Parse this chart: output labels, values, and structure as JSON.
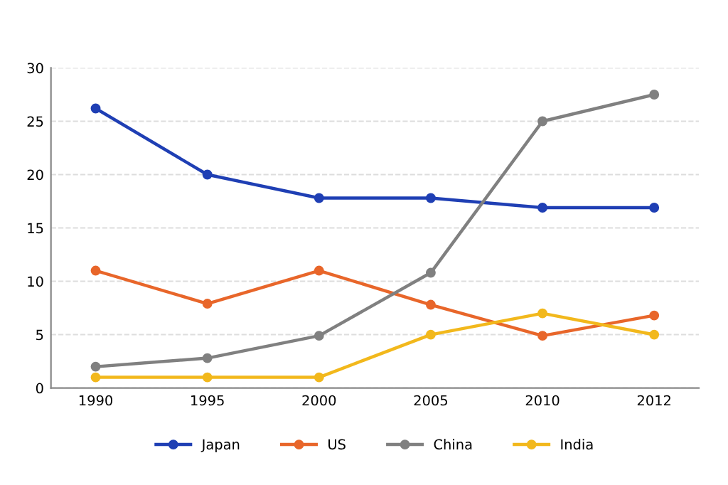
{
  "chart_data": {
    "type": "line",
    "categories": [
      "1990",
      "1995",
      "2000",
      "2005",
      "2010",
      "2012"
    ],
    "ylim": [
      0,
      30
    ],
    "yticks": [
      0,
      5,
      10,
      15,
      20,
      25,
      30
    ],
    "grid": "y",
    "legend": "bottom",
    "marker": "circle",
    "line_style": "solid",
    "series": [
      {
        "name": "Japan",
        "color": "#1f3fb4",
        "values": [
          26.2,
          20,
          17.8,
          17.8,
          16.9,
          16.9
        ]
      },
      {
        "name": "US",
        "color": "#e8662a",
        "values": [
          11,
          7.9,
          11,
          7.8,
          4.9,
          6.8
        ]
      },
      {
        "name": "China",
        "color": "#808080",
        "values": [
          2,
          2.8,
          4.9,
          10.8,
          25,
          27.5
        ]
      },
      {
        "name": "India",
        "color": "#f2b81c",
        "values": [
          1,
          1,
          1,
          5,
          7,
          5
        ]
      }
    ]
  }
}
